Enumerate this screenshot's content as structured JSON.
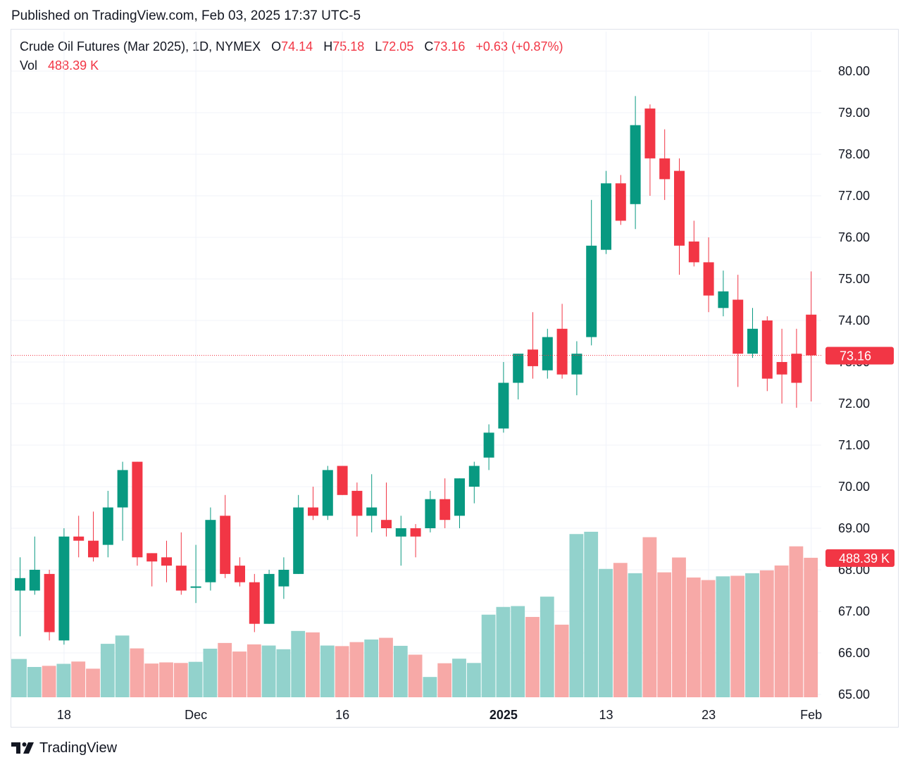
{
  "header": {
    "published": "Published on TradingView.com, Feb 03, 2025 17:37 UTC-5"
  },
  "legend": {
    "symbol": "Crude Oil Futures (Mar 2025), 1D, NYMEX",
    "o_label": "O",
    "o_value": "74.14",
    "h_label": "H",
    "h_value": "75.18",
    "l_label": "L",
    "l_value": "72.05",
    "c_label": "C",
    "c_value": "73.16",
    "change": "+0.63 (+0.87%)",
    "vol_label": "Vol",
    "vol_value": "488.39 K"
  },
  "footer": {
    "brand": "TradingView",
    "logo_icon": "tradingview-logo-icon"
  },
  "colors": {
    "up": "#089981",
    "down": "#f23645",
    "up_vol": "#92d2cc",
    "down_vol": "#f7a9a7",
    "grid": "#f0f3fa",
    "axis_text": "#131722"
  },
  "chart_data": {
    "type": "candlestick",
    "title": "Crude Oil Futures (Mar 2025), 1D, NYMEX",
    "price_axis": {
      "ylim": [
        65,
        80.3
      ],
      "ticks": [
        "80.00",
        "79.00",
        "78.00",
        "77.00",
        "76.00",
        "75.00",
        "74.00",
        "73.00",
        "72.00",
        "71.00",
        "70.00",
        "69.00",
        "68.00",
        "67.00",
        "66.00",
        "65.00"
      ]
    },
    "x_ticks": [
      {
        "label": "18",
        "index": 3
      },
      {
        "label": "Dec",
        "index": 12
      },
      {
        "label": "16",
        "index": 22
      },
      {
        "label": "2025",
        "index": 33
      },
      {
        "label": "13",
        "index": 40
      },
      {
        "label": "23",
        "index": 47
      },
      {
        "label": "Feb",
        "index": 54
      }
    ],
    "last_price": {
      "value": 73.16,
      "label": "73.16"
    },
    "last_volume_label": "488.39 K",
    "candles": [
      {
        "o": 67.5,
        "h": 68.3,
        "l": 66.4,
        "c": 67.8
      },
      {
        "o": 67.5,
        "h": 68.8,
        "l": 67.4,
        "c": 68.0
      },
      {
        "o": 67.9,
        "h": 68.0,
        "l": 66.3,
        "c": 66.5
      },
      {
        "o": 66.3,
        "h": 69.0,
        "l": 66.2,
        "c": 68.8
      },
      {
        "o": 68.8,
        "h": 69.3,
        "l": 68.3,
        "c": 68.7
      },
      {
        "o": 68.7,
        "h": 69.4,
        "l": 68.2,
        "c": 68.3
      },
      {
        "o": 68.6,
        "h": 69.9,
        "l": 68.3,
        "c": 69.5
      },
      {
        "o": 69.5,
        "h": 70.6,
        "l": 68.7,
        "c": 70.4
      },
      {
        "o": 70.6,
        "h": 70.6,
        "l": 68.1,
        "c": 68.3
      },
      {
        "o": 68.4,
        "h": 68.4,
        "l": 67.6,
        "c": 68.2
      },
      {
        "o": 68.3,
        "h": 68.7,
        "l": 67.7,
        "c": 68.1
      },
      {
        "o": 68.1,
        "h": 68.9,
        "l": 67.4,
        "c": 67.5
      },
      {
        "o": 67.6,
        "h": 68.6,
        "l": 67.2,
        "c": 67.6
      },
      {
        "o": 67.7,
        "h": 69.5,
        "l": 67.5,
        "c": 69.2
      },
      {
        "o": 69.3,
        "h": 69.8,
        "l": 67.8,
        "c": 67.9
      },
      {
        "o": 68.1,
        "h": 68.3,
        "l": 67.6,
        "c": 67.7
      },
      {
        "o": 67.7,
        "h": 67.9,
        "l": 66.5,
        "c": 66.7
      },
      {
        "o": 66.7,
        "h": 68.0,
        "l": 66.7,
        "c": 67.9
      },
      {
        "o": 67.6,
        "h": 68.3,
        "l": 67.3,
        "c": 68.0
      },
      {
        "o": 67.9,
        "h": 69.8,
        "l": 67.9,
        "c": 69.5
      },
      {
        "o": 69.5,
        "h": 70.0,
        "l": 69.2,
        "c": 69.3
      },
      {
        "o": 69.3,
        "h": 70.5,
        "l": 69.2,
        "c": 70.4
      },
      {
        "o": 70.5,
        "h": 70.5,
        "l": 69.8,
        "c": 69.8
      },
      {
        "o": 69.9,
        "h": 70.1,
        "l": 68.8,
        "c": 69.3
      },
      {
        "o": 69.3,
        "h": 70.3,
        "l": 68.9,
        "c": 69.5
      },
      {
        "o": 69.2,
        "h": 70.1,
        "l": 68.8,
        "c": 69.0
      },
      {
        "o": 68.8,
        "h": 69.3,
        "l": 68.1,
        "c": 69.0
      },
      {
        "o": 69.0,
        "h": 69.1,
        "l": 68.3,
        "c": 68.8
      },
      {
        "o": 69.0,
        "h": 69.9,
        "l": 68.9,
        "c": 69.7
      },
      {
        "o": 69.7,
        "h": 70.2,
        "l": 69.0,
        "c": 69.2
      },
      {
        "o": 69.3,
        "h": 70.2,
        "l": 69.0,
        "c": 70.2
      },
      {
        "o": 70.0,
        "h": 70.6,
        "l": 69.6,
        "c": 70.5
      },
      {
        "o": 70.7,
        "h": 71.5,
        "l": 70.4,
        "c": 71.3
      },
      {
        "o": 71.4,
        "h": 73.0,
        "l": 71.3,
        "c": 72.5
      },
      {
        "o": 72.5,
        "h": 73.2,
        "l": 72.1,
        "c": 73.2
      },
      {
        "o": 73.3,
        "h": 74.2,
        "l": 72.6,
        "c": 72.9
      },
      {
        "o": 72.8,
        "h": 73.8,
        "l": 72.6,
        "c": 73.6
      },
      {
        "o": 73.8,
        "h": 74.4,
        "l": 72.6,
        "c": 72.7
      },
      {
        "o": 72.7,
        "h": 73.5,
        "l": 72.2,
        "c": 73.2
      },
      {
        "o": 73.6,
        "h": 76.9,
        "l": 73.4,
        "c": 75.8
      },
      {
        "o": 75.7,
        "h": 77.6,
        "l": 75.6,
        "c": 77.3
      },
      {
        "o": 77.3,
        "h": 77.5,
        "l": 76.3,
        "c": 76.4
      },
      {
        "o": 76.8,
        "h": 79.4,
        "l": 76.2,
        "c": 78.7
      },
      {
        "o": 79.1,
        "h": 79.2,
        "l": 77.0,
        "c": 77.9
      },
      {
        "o": 77.9,
        "h": 78.6,
        "l": 76.9,
        "c": 77.4
      },
      {
        "o": 77.6,
        "h": 77.9,
        "l": 75.1,
        "c": 75.8
      },
      {
        "o": 75.9,
        "h": 76.4,
        "l": 75.3,
        "c": 75.4
      },
      {
        "o": 75.4,
        "h": 76.0,
        "l": 74.2,
        "c": 74.6
      },
      {
        "o": 74.3,
        "h": 75.2,
        "l": 74.1,
        "c": 74.7
      },
      {
        "o": 74.5,
        "h": 75.1,
        "l": 72.4,
        "c": 73.2
      },
      {
        "o": 73.2,
        "h": 74.3,
        "l": 73.1,
        "c": 73.8
      },
      {
        "o": 74.0,
        "h": 74.1,
        "l": 72.3,
        "c": 72.6
      },
      {
        "o": 73.0,
        "h": 73.8,
        "l": 72.0,
        "c": 72.7
      },
      {
        "o": 73.2,
        "h": 73.8,
        "l": 71.9,
        "c": 72.5
      },
      {
        "o": 74.14,
        "h": 75.18,
        "l": 72.05,
        "c": 73.16
      }
    ],
    "volume": {
      "note": "volume scale not printed; values relative, last bar = 488.39 K",
      "values": [
        134,
        106,
        110,
        117,
        125,
        100,
        187,
        216,
        171,
        118,
        122,
        120,
        124,
        170,
        190,
        160,
        185,
        181,
        168,
        232,
        227,
        181,
        179,
        193,
        202,
        208,
        180,
        149,
        71,
        119,
        135,
        120,
        289,
        316,
        319,
        281,
        352,
        254,
        571,
        579,
        449,
        470,
        434,
        560,
        437,
        489,
        419,
        410,
        423,
        425,
        434,
        444,
        461,
        528,
        488
      ]
    }
  }
}
